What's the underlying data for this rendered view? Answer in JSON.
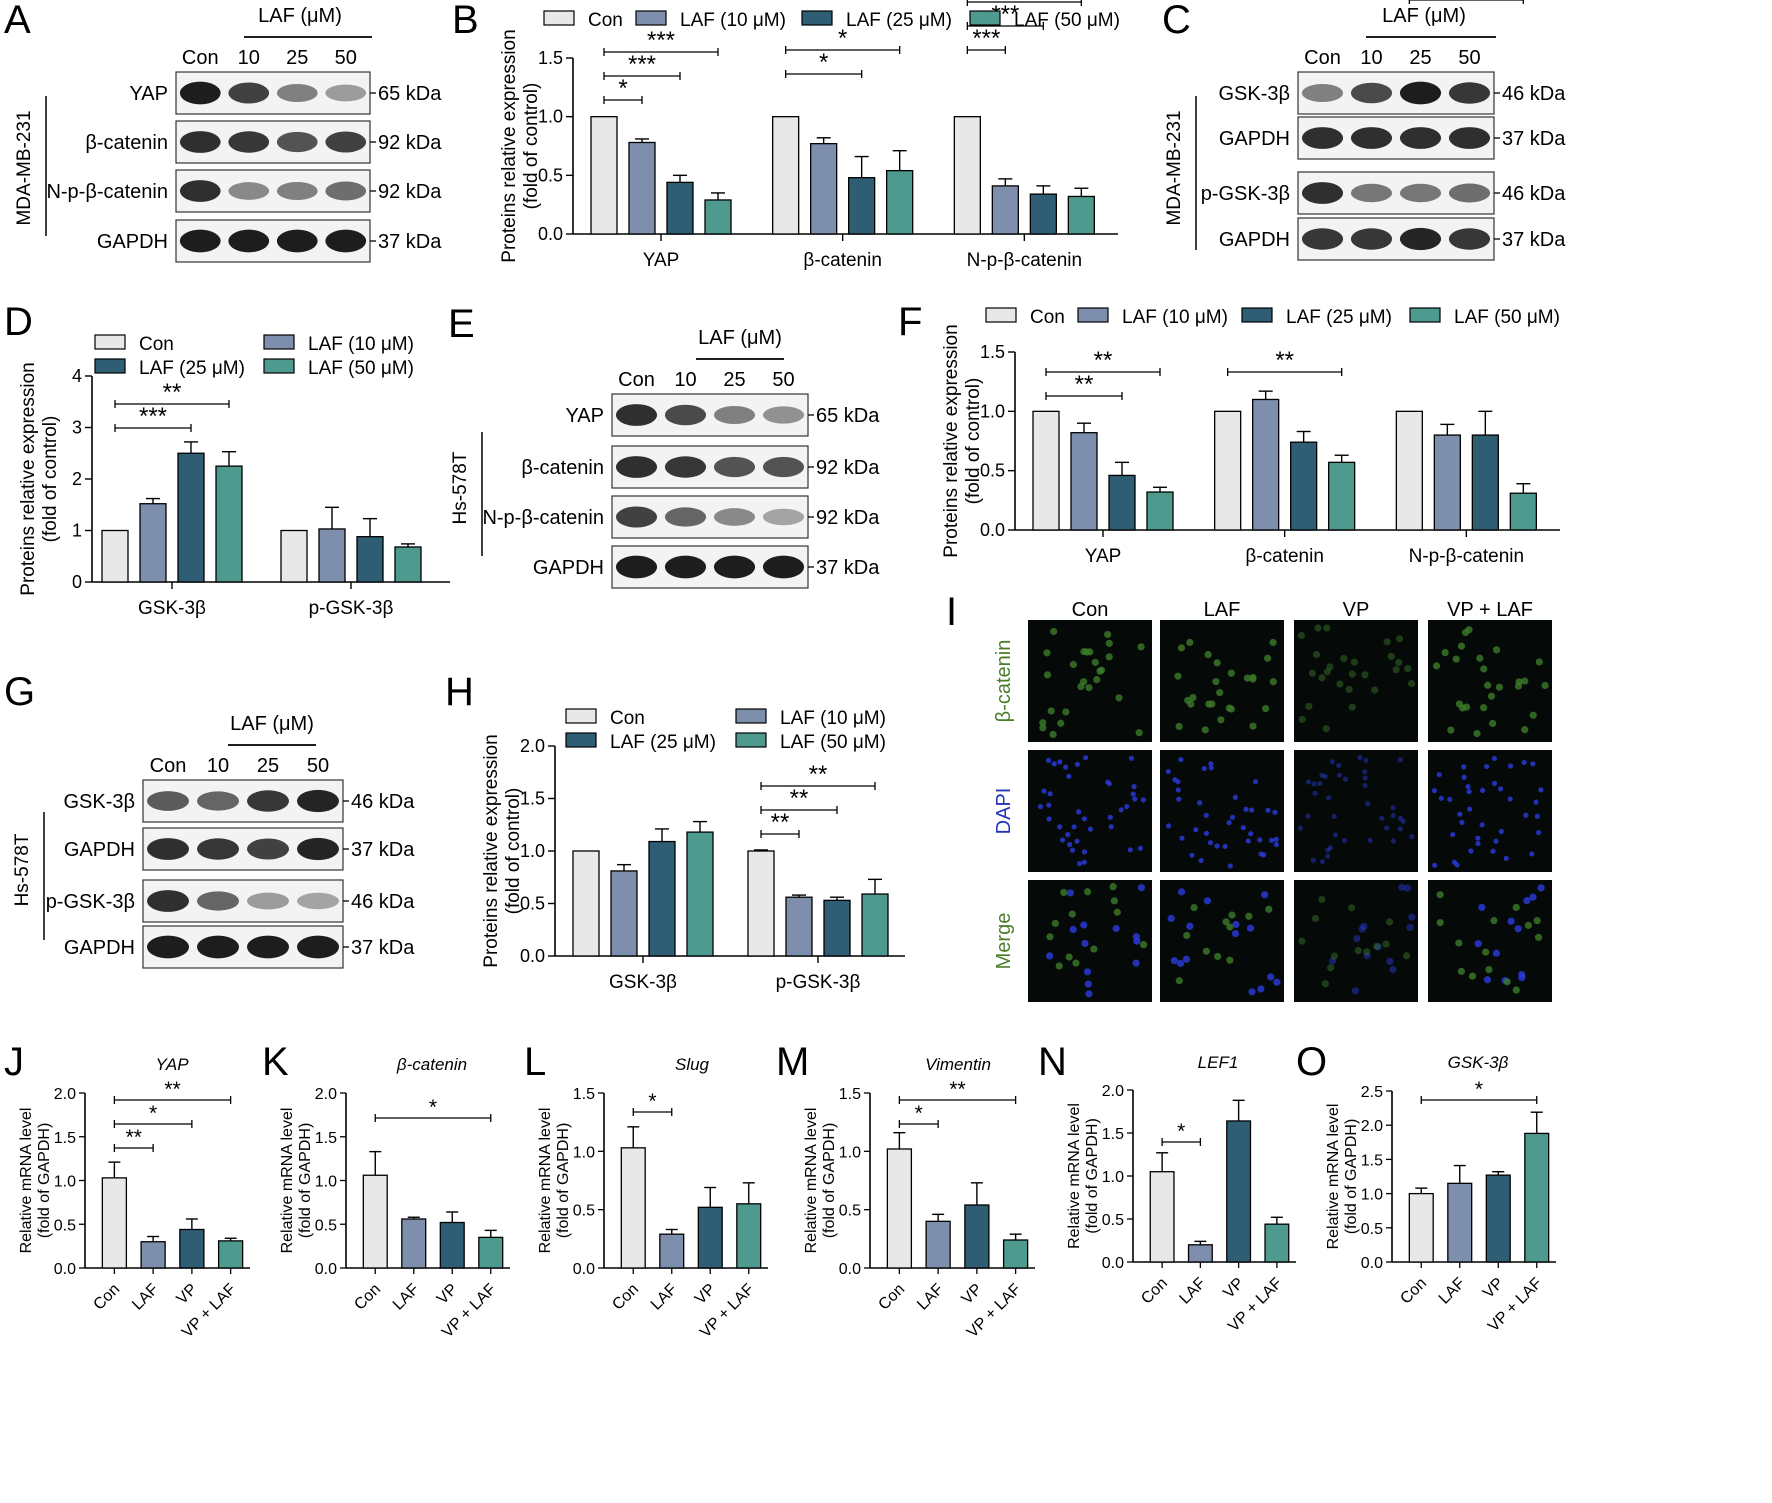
{
  "colors": {
    "con": "#e8e8e8",
    "c10": "#7d8fad",
    "c25": "#2f5d73",
    "c50": "#4e9a8f",
    "ifGreen": "#4a7d2a",
    "ifBlue": "#2533b8",
    "ink": "#000000"
  },
  "panel_labels": [
    "A",
    "B",
    "C",
    "D",
    "E",
    "F",
    "G",
    "H",
    "I",
    "J",
    "K",
    "L",
    "M",
    "N",
    "O"
  ],
  "blots": {
    "A": {
      "title": "LAF (μM)",
      "lanes": [
        "Con",
        "10",
        "25",
        "50"
      ],
      "cell_line": "MDA-MB-231",
      "rows": [
        {
          "label": "YAP",
          "kda": "65 kDa",
          "intensity": [
            1,
            0.8,
            0.45,
            0.3
          ]
        },
        {
          "label": "β-catenin",
          "kda": "92 kDa",
          "intensity": [
            0.9,
            0.85,
            0.7,
            0.8
          ]
        },
        {
          "label": "N-p-β-catenin",
          "kda": "92 kDa",
          "intensity": [
            0.9,
            0.4,
            0.45,
            0.55
          ]
        },
        {
          "label": "GAPDH",
          "kda": "37 kDa",
          "intensity": [
            1,
            1,
            1,
            1
          ]
        }
      ]
    },
    "C": {
      "title": "LAF (μM)",
      "lanes": [
        "Con",
        "10",
        "25",
        "50"
      ],
      "cell_line": "MDA-MB-231",
      "rows": [
        {
          "label": "GSK-3β",
          "kda": "46 kDa",
          "intensity": [
            0.45,
            0.75,
            1,
            0.85
          ]
        },
        {
          "label": "GAPDH",
          "kda": "37 kDa",
          "intensity": [
            0.9,
            0.9,
            0.9,
            0.9
          ]
        },
        {
          "label": "p-GSK-3β",
          "kda": "46 kDa",
          "intensity": [
            0.9,
            0.5,
            0.5,
            0.55
          ]
        },
        {
          "label": "GAPDH",
          "kda": "37 kDa",
          "intensity": [
            0.85,
            0.85,
            0.95,
            0.85
          ]
        }
      ]
    },
    "E": {
      "title": "LAF (μM)",
      "lanes": [
        "Con",
        "10",
        "25",
        "50"
      ],
      "cell_line": "Hs-578T",
      "rows": [
        {
          "label": "YAP",
          "kda": "65 kDa",
          "intensity": [
            0.9,
            0.75,
            0.45,
            0.35
          ]
        },
        {
          "label": "β-catenin",
          "kda": "92 kDa",
          "intensity": [
            0.9,
            0.85,
            0.7,
            0.7
          ]
        },
        {
          "label": "N-p-β-catenin",
          "kda": "92 kDa",
          "intensity": [
            0.8,
            0.6,
            0.4,
            0.25
          ]
        },
        {
          "label": "GAPDH",
          "kda": "37 kDa",
          "intensity": [
            1,
            1,
            1,
            1
          ]
        }
      ]
    },
    "G": {
      "title": "LAF (μM)",
      "lanes": [
        "Con",
        "10",
        "25",
        "50"
      ],
      "cell_line": "Hs-578T",
      "rows": [
        {
          "label": "GSK-3β",
          "kda": "46 kDa",
          "intensity": [
            0.65,
            0.6,
            0.85,
            0.95
          ]
        },
        {
          "label": "GAPDH",
          "kda": "37 kDa",
          "intensity": [
            0.9,
            0.85,
            0.8,
            0.95
          ]
        },
        {
          "label": "p-GSK-3β",
          "kda": "46 kDa",
          "intensity": [
            0.9,
            0.6,
            0.3,
            0.25
          ]
        },
        {
          "label": "GAPDH",
          "kda": "37 kDa",
          "intensity": [
            1,
            1,
            1,
            1
          ]
        }
      ]
    }
  },
  "if_panel": {
    "columns": [
      "Con",
      "LAF",
      "VP",
      "VP + LAF"
    ],
    "rows": [
      {
        "label": "β-catenin",
        "color": "#4a7d2a"
      },
      {
        "label": "DAPI",
        "color": "#2533b8"
      },
      {
        "label": "Merge",
        "color": "#4a7d2a"
      }
    ]
  },
  "chart_data": [
    {
      "panel": "B",
      "type": "bar",
      "legend": [
        "Con",
        "LAF (10 μM)",
        "LAF (25 μM)",
        "LAF (50 μM)"
      ],
      "categories": [
        "YAP",
        "β-catenin",
        "N-p-β-catenin"
      ],
      "series": [
        {
          "name": "Con",
          "values": [
            1,
            1,
            1
          ],
          "errors": [
            0,
            0,
            0
          ]
        },
        {
          "name": "LAF (10 μM)",
          "values": [
            0.78,
            0.77,
            0.41
          ],
          "errors": [
            0.03,
            0.05,
            0.06
          ]
        },
        {
          "name": "LAF (25 μM)",
          "values": [
            0.44,
            0.48,
            0.34
          ],
          "errors": [
            0.06,
            0.18,
            0.07
          ]
        },
        {
          "name": "LAF (50 μM)",
          "values": [
            0.29,
            0.54,
            0.32
          ],
          "errors": [
            0.06,
            0.17,
            0.07
          ]
        }
      ],
      "ylabel": "Proteins relative expression\n(fold of control)",
      "ylim": [
        0,
        1.5
      ],
      "yticks": [
        "0.0",
        "0.5",
        "1.0",
        "1.5"
      ],
      "significance": [
        {
          "cat": 0,
          "from": 0,
          "to": 1,
          "text": "*"
        },
        {
          "cat": 0,
          "from": 0,
          "to": 2,
          "text": "***"
        },
        {
          "cat": 0,
          "from": 0,
          "to": 3,
          "text": "***"
        },
        {
          "cat": 1,
          "from": 0,
          "to": 2,
          "text": "*"
        },
        {
          "cat": 1,
          "from": 0,
          "to": 3,
          "text": "*"
        },
        {
          "cat": 2,
          "from": 0,
          "to": 1,
          "text": "***"
        },
        {
          "cat": 2,
          "from": 0,
          "to": 2,
          "text": "***"
        },
        {
          "cat": 2,
          "from": 0,
          "to": 3,
          "text": "***"
        }
      ]
    },
    {
      "panel": "D",
      "type": "bar",
      "legend": [
        "Con",
        "LAF (25 μM)",
        "LAF (10 μM)",
        "LAF (50 μM)"
      ],
      "categories": [
        "GSK-3β",
        "p-GSK-3β"
      ],
      "series": [
        {
          "name": "Con",
          "values": [
            1,
            1
          ],
          "errors": [
            0,
            0
          ]
        },
        {
          "name": "LAF (10 μM)",
          "values": [
            1.52,
            1.03
          ],
          "errors": [
            0.1,
            0.42
          ]
        },
        {
          "name": "LAF (25 μM)",
          "values": [
            2.5,
            0.88
          ],
          "errors": [
            0.22,
            0.35
          ]
        },
        {
          "name": "LAF (50 μM)",
          "values": [
            2.25,
            0.68
          ],
          "errors": [
            0.28,
            0.06
          ]
        }
      ],
      "ylabel": "Proteins relative expression\n(fold of control)",
      "ylim": [
        0,
        4
      ],
      "yticks": [
        "0",
        "1",
        "2",
        "3",
        "4"
      ],
      "significance": [
        {
          "cat": 0,
          "from": 0,
          "to": 2,
          "text": "***"
        },
        {
          "cat": 0,
          "from": 0,
          "to": 3,
          "text": "**"
        }
      ]
    },
    {
      "panel": "F",
      "type": "bar",
      "legend": [
        "Con",
        "LAF (10 μM)",
        "LAF (25 μM)",
        "LAF (50 μM)"
      ],
      "categories": [
        "YAP",
        "β-catenin",
        "N-p-β-catenin"
      ],
      "series": [
        {
          "name": "Con",
          "values": [
            1,
            1,
            1
          ],
          "errors": [
            0,
            0,
            0
          ]
        },
        {
          "name": "LAF (10 μM)",
          "values": [
            0.82,
            1.1,
            0.8
          ],
          "errors": [
            0.08,
            0.07,
            0.09
          ]
        },
        {
          "name": "LAF (25 μM)",
          "values": [
            0.46,
            0.74,
            0.8
          ],
          "errors": [
            0.11,
            0.09,
            0.2
          ]
        },
        {
          "name": "LAF (50 μM)",
          "values": [
            0.32,
            0.57,
            0.31
          ],
          "errors": [
            0.04,
            0.06,
            0.08
          ]
        }
      ],
      "ylabel": "Proteins relative expression\n(fold of control)",
      "ylim": [
        0,
        1.5
      ],
      "yticks": [
        "0.0",
        "0.5",
        "1.0",
        "1.5"
      ],
      "significance": [
        {
          "cat": 0,
          "from": 0,
          "to": 2,
          "text": "**"
        },
        {
          "cat": 0,
          "from": 0,
          "to": 3,
          "text": "**"
        },
        {
          "cat": 1,
          "from": 0,
          "to": 3,
          "text": "**"
        },
        {
          "cat": 2,
          "from": 0,
          "to": 3,
          "text": "**"
        }
      ]
    },
    {
      "panel": "H",
      "type": "bar",
      "legend": [
        "Con",
        "LAF (25 μM)",
        "LAF (10 μM)",
        "LAF (50 μM)"
      ],
      "categories": [
        "GSK-3β",
        "p-GSK-3β"
      ],
      "series": [
        {
          "name": "Con",
          "values": [
            1,
            1
          ],
          "errors": [
            0,
            0.01
          ]
        },
        {
          "name": "LAF (10 μM)",
          "values": [
            0.81,
            0.56
          ],
          "errors": [
            0.06,
            0.02
          ]
        },
        {
          "name": "LAF (25 μM)",
          "values": [
            1.09,
            0.53
          ],
          "errors": [
            0.12,
            0.03
          ]
        },
        {
          "name": "LAF (50 μM)",
          "values": [
            1.18,
            0.59
          ],
          "errors": [
            0.1,
            0.14
          ]
        }
      ],
      "ylabel": "Proteins relative expression\n(fold of control)",
      "ylim": [
        0,
        2
      ],
      "yticks": [
        "0.0",
        "0.5",
        "1.0",
        "1.5",
        "2.0"
      ],
      "significance": [
        {
          "cat": 1,
          "from": 0,
          "to": 1,
          "text": "**"
        },
        {
          "cat": 1,
          "from": 0,
          "to": 2,
          "text": "**"
        },
        {
          "cat": 1,
          "from": 0,
          "to": 3,
          "text": "**"
        }
      ]
    },
    {
      "panel": "J",
      "type": "bar",
      "title": "YAP",
      "categories": [
        "Con",
        "LAF",
        "VP",
        "VP + LAF"
      ],
      "values": [
        1.03,
        0.3,
        0.44,
        0.31
      ],
      "errors": [
        0.18,
        0.06,
        0.12,
        0.03
      ],
      "ylabel": "Relative mRNA level\n(fold of GAPDH)",
      "ylim": [
        0,
        2
      ],
      "yticks": [
        "0.0",
        "0.5",
        "1.0",
        "1.5",
        "2.0"
      ],
      "significance": [
        {
          "from": 0,
          "to": 1,
          "text": "**"
        },
        {
          "from": 0,
          "to": 2,
          "text": "*"
        },
        {
          "from": 0,
          "to": 3,
          "text": "**"
        }
      ]
    },
    {
      "panel": "K",
      "type": "bar",
      "title": "β-catenin",
      "categories": [
        "Con",
        "LAF",
        "VP",
        "VP + LAF"
      ],
      "values": [
        1.06,
        0.56,
        0.52,
        0.35
      ],
      "errors": [
        0.27,
        0.02,
        0.12,
        0.08
      ],
      "ylabel": "Relative mRNA level\n(fold of GAPDH)",
      "ylim": [
        0,
        2
      ],
      "yticks": [
        "0.0",
        "0.5",
        "1.0",
        "1.5",
        "2.0"
      ],
      "significance": [
        {
          "from": 0,
          "to": 3,
          "text": "*"
        }
      ]
    },
    {
      "panel": "L",
      "type": "bar",
      "title": "Slug",
      "categories": [
        "Con",
        "LAF",
        "VP",
        "VP + LAF"
      ],
      "values": [
        1.03,
        0.29,
        0.52,
        0.55
      ],
      "errors": [
        0.18,
        0.04,
        0.17,
        0.18
      ],
      "ylabel": "Relative mRNA level\n(fold of GAPDH)",
      "ylim": [
        0,
        1.5
      ],
      "yticks": [
        "0.0",
        "0.5",
        "1.0",
        "1.5"
      ],
      "significance": [
        {
          "from": 0,
          "to": 1,
          "text": "*"
        }
      ]
    },
    {
      "panel": "M",
      "type": "bar",
      "title": "Vimentin",
      "categories": [
        "Con",
        "LAF",
        "VP",
        "VP + LAF"
      ],
      "values": [
        1.02,
        0.4,
        0.54,
        0.24
      ],
      "errors": [
        0.14,
        0.06,
        0.19,
        0.05
      ],
      "ylabel": "Relative mRNA level\n(fold of GAPDH)",
      "ylim": [
        0,
        1.5
      ],
      "yticks": [
        "0.0",
        "0.5",
        "1.0",
        "1.5"
      ],
      "significance": [
        {
          "from": 0,
          "to": 1,
          "text": "*"
        },
        {
          "from": 0,
          "to": 3,
          "text": "**"
        }
      ]
    },
    {
      "panel": "N",
      "type": "bar",
      "title": "LEF1",
      "categories": [
        "Con",
        "LAF",
        "VP",
        "VP + LAF"
      ],
      "values": [
        1.05,
        0.2,
        1.64,
        0.44
      ],
      "errors": [
        0.22,
        0.04,
        0.24,
        0.08
      ],
      "ylabel": "Relative mRNA level\n(fold of GAPDH)",
      "ylim": [
        0,
        2
      ],
      "yticks": [
        "0.0",
        "0.5",
        "1.0",
        "1.5",
        "2.0"
      ],
      "significance": [
        {
          "from": 0,
          "to": 1,
          "text": "*"
        }
      ]
    },
    {
      "panel": "O",
      "type": "bar",
      "title": "GSK-3β",
      "categories": [
        "Con",
        "LAF",
        "VP",
        "VP + LAF"
      ],
      "values": [
        1.0,
        1.15,
        1.27,
        1.88
      ],
      "errors": [
        0.08,
        0.26,
        0.05,
        0.31
      ],
      "ylabel": "Relative mRNA level\n(fold of GAPDH)",
      "ylim": [
        0,
        2.5
      ],
      "yticks": [
        "0.0",
        "0.5",
        "1.0",
        "1.5",
        "2.0",
        "2.5"
      ],
      "significance": [
        {
          "from": 0,
          "to": 3,
          "text": "*"
        }
      ]
    }
  ]
}
